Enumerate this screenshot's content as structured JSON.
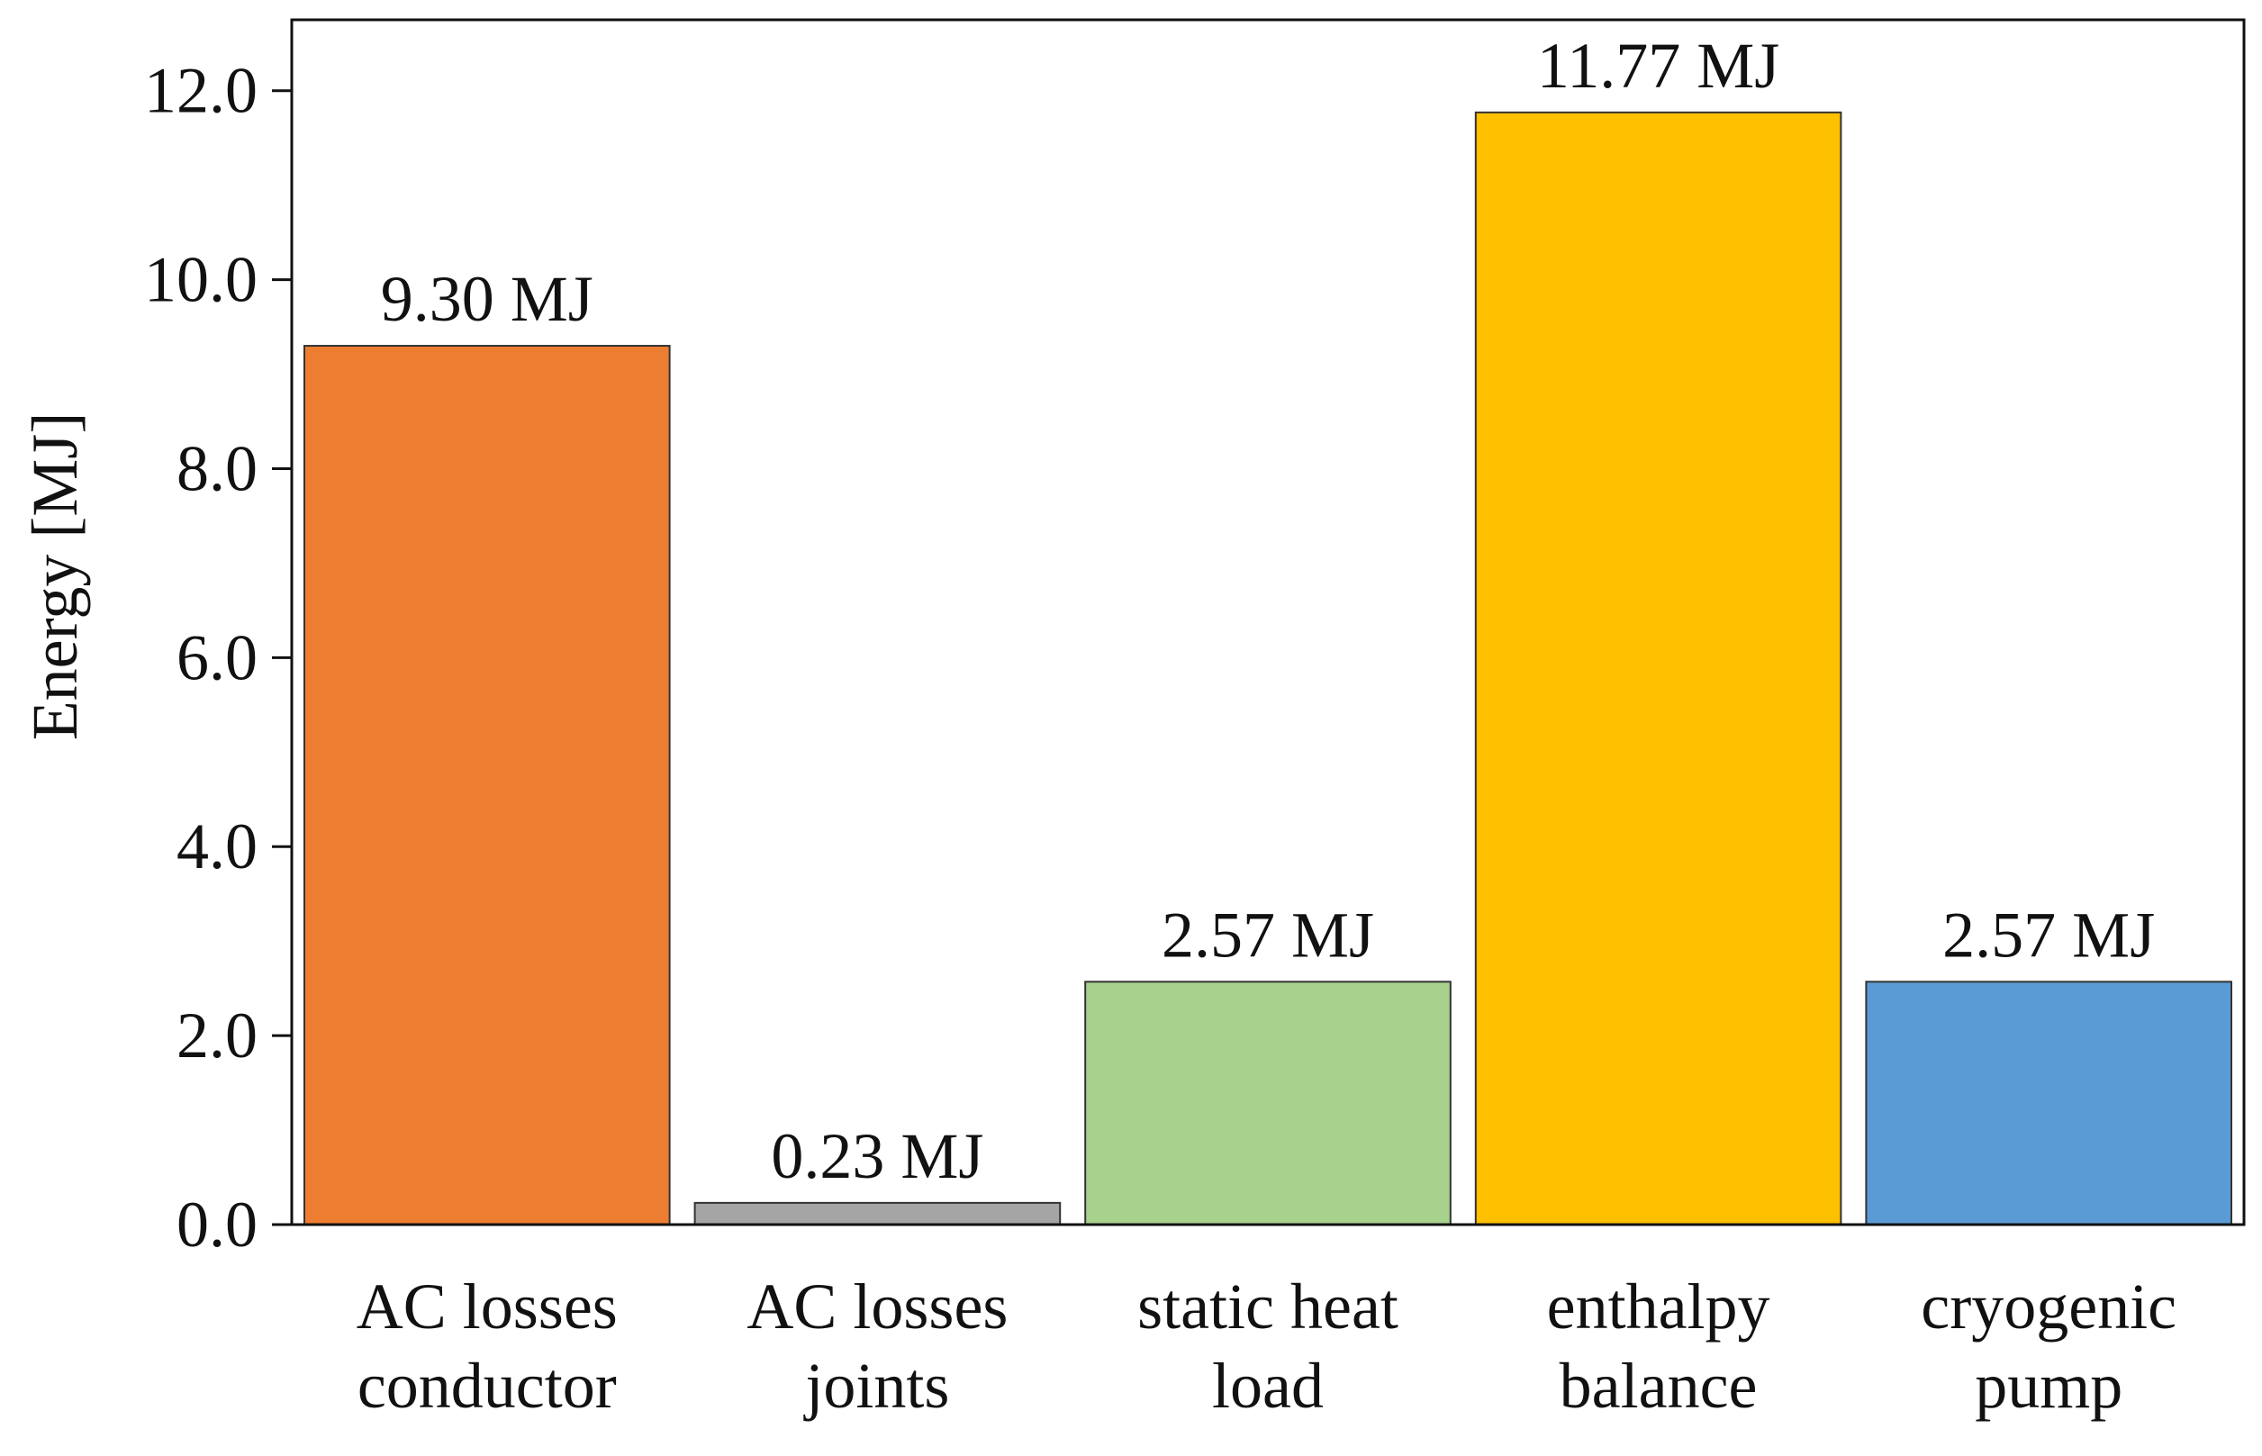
{
  "chart_data": {
    "type": "bar",
    "categories": [
      [
        "AC losses",
        "conductor"
      ],
      [
        "AC losses",
        "joints"
      ],
      [
        "static heat",
        "load"
      ],
      [
        "enthalpy",
        "balance"
      ],
      [
        "cryogenic",
        "pump"
      ]
    ],
    "values": [
      9.3,
      0.23,
      2.57,
      11.77,
      2.57
    ],
    "data_labels": [
      "9.30 MJ",
      "0.23 MJ",
      "2.57 MJ",
      "11.77 MJ",
      "2.57 MJ"
    ],
    "colors": [
      "#ed7d31",
      "#a5a5a5",
      "#a9d18e",
      "#ffc000",
      "#5b9bd5"
    ],
    "title": "",
    "xlabel": "",
    "ylabel": "Energy [MJ]",
    "ylim": [
      0,
      12.75
    ],
    "yticks": [
      0,
      2,
      4,
      6,
      8,
      10,
      12
    ],
    "ytick_labels": [
      "0.0",
      "2.0",
      "4.0",
      "6.0",
      "8.0",
      "10.0",
      "12.0"
    ],
    "grid": false,
    "legend": "none"
  }
}
